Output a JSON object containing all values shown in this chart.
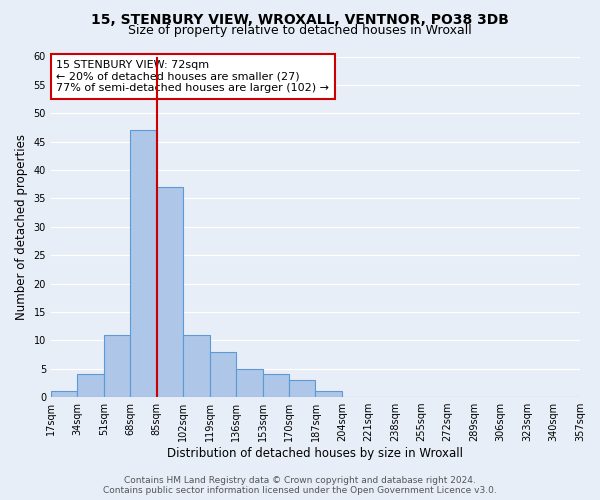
{
  "title_line1": "15, STENBURY VIEW, WROXALL, VENTNOR, PO38 3DB",
  "title_line2": "Size of property relative to detached houses in Wroxall",
  "xlabel": "Distribution of detached houses by size in Wroxall",
  "ylabel": "Number of detached properties",
  "bar_values": [
    1,
    4,
    11,
    47,
    37,
    11,
    8,
    5,
    4,
    3,
    1,
    0,
    0,
    0,
    0,
    0,
    0,
    0,
    0,
    0
  ],
  "bin_labels": [
    "17sqm",
    "34sqm",
    "51sqm",
    "68sqm",
    "85sqm",
    "102sqm",
    "119sqm",
    "136sqm",
    "153sqm",
    "170sqm",
    "187sqm",
    "204sqm",
    "221sqm",
    "238sqm",
    "255sqm",
    "272sqm",
    "289sqm",
    "306sqm",
    "323sqm",
    "340sqm",
    "357sqm"
  ],
  "bar_color": "#aec6e8",
  "bar_edge_color": "#5b9bd5",
  "vline_x": 3.0,
  "vline_color": "#cc0000",
  "annotation_line1": "15 STENBURY VIEW: 72sqm",
  "annotation_line2": "← 20% of detached houses are smaller (27)",
  "annotation_line3": "77% of semi-detached houses are larger (102) →",
  "annotation_box_color": "#ffffff",
  "annotation_box_edge": "#cc0000",
  "ylim": [
    0,
    60
  ],
  "yticks": [
    0,
    5,
    10,
    15,
    20,
    25,
    30,
    35,
    40,
    45,
    50,
    55,
    60
  ],
  "footer_line1": "Contains HM Land Registry data © Crown copyright and database right 2024.",
  "footer_line2": "Contains public sector information licensed under the Open Government Licence v3.0.",
  "bg_color": "#e8eef7",
  "plot_bg_color": "#e8eef7",
  "grid_color": "#ffffff",
  "title_fontsize": 10,
  "subtitle_fontsize": 9,
  "axis_label_fontsize": 8.5,
  "tick_fontsize": 7,
  "annotation_fontsize": 8,
  "footer_fontsize": 6.5
}
